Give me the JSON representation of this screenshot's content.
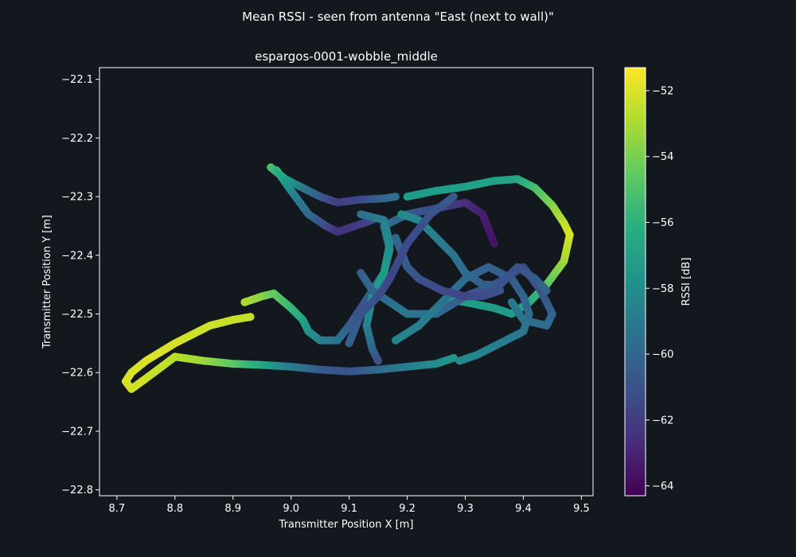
{
  "figure": {
    "suptitle": "Mean RSSI - seen from antenna \"East (next to wall)\""
  },
  "chart_data": {
    "type": "scatter",
    "title": "espargos-0001-wobble_middle",
    "xlabel": "Transmitter Position X [m]",
    "ylabel": "Transmitter Position Y [m]",
    "xlim": [
      8.67,
      9.52
    ],
    "ylim": [
      -22.81,
      -22.08
    ],
    "xticks": [
      8.7,
      8.8,
      8.9,
      9.0,
      9.1,
      9.2,
      9.3,
      9.4,
      9.5
    ],
    "xtick_labels": [
      "8.7",
      "8.8",
      "8.9",
      "9.0",
      "9.1",
      "9.2",
      "9.3",
      "9.4",
      "9.5"
    ],
    "yticks": [
      -22.1,
      -22.2,
      -22.3,
      -22.4,
      -22.5,
      -22.6,
      -22.7,
      -22.8
    ],
    "ytick_labels": [
      "−22.1",
      "−22.2",
      "−22.3",
      "−22.4",
      "−22.5",
      "−22.6",
      "−22.7",
      "−22.8"
    ],
    "grid": false,
    "colorbar": {
      "label": "RSSI [dB]",
      "colormap": "viridis",
      "range": [
        -64.3,
        -51.3
      ],
      "ticks": [
        -52,
        -54,
        -56,
        -58,
        -60,
        -62,
        -64
      ],
      "tick_labels": [
        "−52",
        "−54",
        "−56",
        "−58",
        "−60",
        "−62",
        "−64"
      ]
    },
    "paths": [
      {
        "points": [
          [
            8.93,
            -22.505
          ],
          [
            8.9,
            -22.51
          ],
          [
            8.86,
            -22.52
          ],
          [
            8.8,
            -22.55
          ],
          [
            8.75,
            -22.58
          ],
          [
            8.725,
            -22.6
          ],
          [
            8.715,
            -22.615
          ],
          [
            8.725,
            -22.628
          ],
          [
            8.75,
            -22.61
          ],
          [
            8.8,
            -22.573
          ],
          [
            8.85,
            -22.58
          ],
          [
            8.9,
            -22.585
          ],
          [
            8.95,
            -22.587
          ],
          [
            9.0,
            -22.59
          ],
          [
            9.05,
            -22.595
          ],
          [
            9.1,
            -22.598
          ],
          [
            9.15,
            -22.595
          ],
          [
            9.2,
            -22.59
          ],
          [
            9.25,
            -22.585
          ],
          [
            9.28,
            -22.575
          ]
        ],
        "rssi": [
          -52.5,
          -52.4,
          -52.3,
          -52.1,
          -52.0,
          -52.0,
          -52.1,
          -52.2,
          -52.2,
          -52.6,
          -53.2,
          -54.5,
          -56.5,
          -58.8,
          -60.5,
          -61.0,
          -60.0,
          -58.8,
          -58.0,
          -57.6
        ]
      },
      {
        "points": [
          [
            8.92,
            -22.48
          ],
          [
            8.95,
            -22.47
          ],
          [
            8.97,
            -22.465
          ],
          [
            9.0,
            -22.49
          ],
          [
            9.02,
            -22.51
          ],
          [
            9.03,
            -22.53
          ],
          [
            9.05,
            -22.545
          ],
          [
            9.08,
            -22.545
          ],
          [
            9.1,
            -22.52
          ],
          [
            9.12,
            -22.49
          ],
          [
            9.14,
            -22.46
          ],
          [
            9.16,
            -22.43
          ],
          [
            9.17,
            -22.39
          ],
          [
            9.16,
            -22.35
          ],
          [
            9.2,
            -22.33
          ],
          [
            9.25,
            -22.32
          ],
          [
            9.3,
            -22.31
          ],
          [
            9.33,
            -22.33
          ],
          [
            9.35,
            -22.38
          ]
        ],
        "rssi": [
          -52.8,
          -53.6,
          -54.4,
          -55.5,
          -56.6,
          -57.6,
          -58.4,
          -59.3,
          -60.4,
          -61.1,
          -60.4,
          -59.2,
          -58.4,
          -59.5,
          -60.5,
          -61.5,
          -62.5,
          -63.2,
          -63.6
        ]
      },
      {
        "points": [
          [
            8.965,
            -22.25
          ],
          [
            8.99,
            -22.27
          ],
          [
            9.02,
            -22.285
          ],
          [
            9.05,
            -22.3
          ],
          [
            9.08,
            -22.31
          ],
          [
            9.12,
            -22.305
          ],
          [
            9.16,
            -22.303
          ],
          [
            9.18,
            -22.3
          ]
        ],
        "rssi": [
          -55.0,
          -56.8,
          -58.8,
          -60.4,
          -62.0,
          -61.5,
          -60.2,
          -59.5
        ]
      },
      {
        "points": [
          [
            8.975,
            -22.255
          ],
          [
            9.0,
            -22.29
          ],
          [
            9.03,
            -22.33
          ],
          [
            9.06,
            -22.35
          ],
          [
            9.08,
            -22.36
          ],
          [
            9.11,
            -22.35
          ],
          [
            9.14,
            -22.34
          ]
        ],
        "rssi": [
          -56.0,
          -58.0,
          -59.8,
          -61.2,
          -62.4,
          -62.2,
          -61.5
        ]
      },
      {
        "points": [
          [
            9.2,
            -22.3
          ],
          [
            9.25,
            -22.29
          ],
          [
            9.3,
            -22.283
          ],
          [
            9.35,
            -22.273
          ],
          [
            9.39,
            -22.27
          ],
          [
            9.42,
            -22.285
          ],
          [
            9.45,
            -22.315
          ],
          [
            9.47,
            -22.345
          ],
          [
            9.48,
            -22.365
          ],
          [
            9.47,
            -22.41
          ],
          [
            9.44,
            -22.45
          ],
          [
            9.41,
            -22.48
          ],
          [
            9.38,
            -22.5
          ],
          [
            9.35,
            -22.49
          ],
          [
            9.3,
            -22.48
          ],
          [
            9.27,
            -22.475
          ]
        ],
        "rssi": [
          -57.2,
          -57.1,
          -57.0,
          -56.9,
          -56.8,
          -55.2,
          -53.8,
          -52.6,
          -52.0,
          -53.0,
          -54.6,
          -56.2,
          -57.2,
          -57.3,
          -57.0,
          -56.9
        ]
      },
      {
        "points": [
          [
            9.12,
            -22.33
          ],
          [
            9.16,
            -22.34
          ],
          [
            9.17,
            -22.38
          ],
          [
            9.16,
            -22.43
          ],
          [
            9.14,
            -22.47
          ],
          [
            9.13,
            -22.52
          ],
          [
            9.14,
            -22.56
          ],
          [
            9.15,
            -22.58
          ]
        ],
        "rssi": [
          -59.5,
          -58.8,
          -58.0,
          -57.2,
          -57.4,
          -58.6,
          -60.0,
          -61.0
        ]
      },
      {
        "points": [
          [
            9.12,
            -22.43
          ],
          [
            9.14,
            -22.46
          ],
          [
            9.17,
            -22.48
          ],
          [
            9.2,
            -22.5
          ],
          [
            9.25,
            -22.5
          ],
          [
            9.3,
            -22.47
          ],
          [
            9.35,
            -22.45
          ],
          [
            9.4,
            -22.42
          ],
          [
            9.43,
            -22.46
          ],
          [
            9.45,
            -22.5
          ],
          [
            9.44,
            -22.52
          ],
          [
            9.4,
            -22.51
          ],
          [
            9.38,
            -22.48
          ]
        ],
        "rssi": [
          -60.5,
          -60.0,
          -59.5,
          -59.0,
          -59.8,
          -60.6,
          -61.3,
          -61.6,
          -61.0,
          -60.3,
          -59.8,
          -59.5,
          -59.0
        ]
      },
      {
        "points": [
          [
            9.18,
            -22.545
          ],
          [
            9.22,
            -22.52
          ],
          [
            9.26,
            -22.48
          ],
          [
            9.3,
            -22.44
          ],
          [
            9.34,
            -22.42
          ],
          [
            9.38,
            -22.44
          ],
          [
            9.4,
            -22.47
          ],
          [
            9.41,
            -22.5
          ],
          [
            9.4,
            -22.53
          ],
          [
            9.36,
            -22.55
          ],
          [
            9.32,
            -22.57
          ],
          [
            9.29,
            -22.58
          ]
        ],
        "rssi": [
          -58.3,
          -58.6,
          -59.2,
          -59.8,
          -60.3,
          -60.6,
          -60.2,
          -59.8,
          -59.2,
          -58.8,
          -58.4,
          -58.2
        ]
      },
      {
        "points": [
          [
            9.19,
            -22.33
          ],
          [
            9.22,
            -22.34
          ],
          [
            9.25,
            -22.37
          ],
          [
            9.28,
            -22.4
          ],
          [
            9.3,
            -22.43
          ],
          [
            9.33,
            -22.45
          ],
          [
            9.36,
            -22.45
          ],
          [
            9.39,
            -22.42
          ],
          [
            9.42,
            -22.44
          ],
          [
            9.44,
            -22.46
          ]
        ],
        "rssi": [
          -58.0,
          -58.3,
          -58.7,
          -59.2,
          -59.8,
          -60.3,
          -60.8,
          -61.0,
          -60.6,
          -60.2
        ]
      },
      {
        "points": [
          [
            9.18,
            -22.37
          ],
          [
            9.2,
            -22.42
          ],
          [
            9.22,
            -22.44
          ],
          [
            9.26,
            -22.46
          ],
          [
            9.3,
            -22.47
          ],
          [
            9.33,
            -22.47
          ],
          [
            9.36,
            -22.46
          ]
        ],
        "rssi": [
          -60.0,
          -60.5,
          -61.0,
          -61.4,
          -61.6,
          -61.4,
          -61.0
        ]
      },
      {
        "points": [
          [
            9.1,
            -22.55
          ],
          [
            9.12,
            -22.5
          ],
          [
            9.15,
            -22.47
          ],
          [
            9.17,
            -22.44
          ],
          [
            9.2,
            -22.38
          ],
          [
            9.24,
            -22.33
          ],
          [
            9.28,
            -22.3
          ]
        ],
        "rssi": [
          -60.4,
          -60.8,
          -61.2,
          -61.5,
          -61.4,
          -61.0,
          -60.6
        ]
      }
    ]
  }
}
